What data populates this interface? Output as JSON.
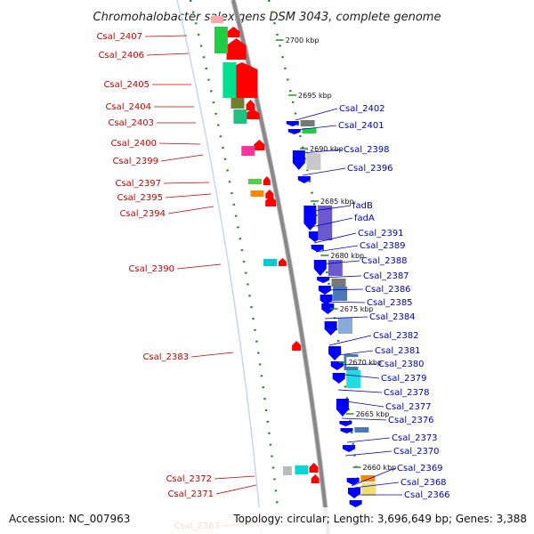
{
  "title": "Chromohalobacter salexigens DSM 3043, complete genome",
  "accession": "Accession: NC_007963",
  "topology": "Topology: circular; Length: 3,696,649 bp; Genes: 3,388",
  "colors": {
    "left_label": "#cc0000",
    "right_label": "#0000cc",
    "forward_gene": "#ff0000",
    "reverse_gene": "#0000ff",
    "backbone": "#888888",
    "ruler": "#2a8a2a"
  },
  "kbp_marks": [
    {
      "label": "2700 kbp",
      "pos": 2700
    },
    {
      "label": "2695 kbp",
      "pos": 2695
    },
    {
      "label": "2690 kbp",
      "pos": 2690
    },
    {
      "label": "2685 kbp",
      "pos": 2685
    },
    {
      "label": "2680 kbp",
      "pos": 2680
    },
    {
      "label": "2675 kbp",
      "pos": 2675
    },
    {
      "label": "2670 kbp",
      "pos": 2670
    },
    {
      "label": "2665 kbp",
      "pos": 2665
    },
    {
      "label": "2660 kbp",
      "pos": 2660
    }
  ],
  "left_labels": [
    "Csal_2407",
    "Csal_2406",
    "Csal_2405",
    "Csal_2404",
    "Csal_2403",
    "Csal_2400",
    "Csal_2399",
    "Csal_2397",
    "Csal_2395",
    "Csal_2394",
    "Csal_2390",
    "Csal_2383",
    "Csal_2372",
    "Csal_2371",
    "Csal_2367"
  ],
  "right_labels": [
    "Csal_2402",
    "Csal_2401",
    "Csal_2398",
    "Csal_2396",
    "fadB",
    "fadA",
    "Csal_2391",
    "Csal_2389",
    "Csal_2388",
    "Csal_2387",
    "Csal_2386",
    "Csal_2385",
    "Csal_2384",
    "Csal_2382",
    "Csal_2381",
    "Csal_2380",
    "Csal_2379",
    "Csal_2378",
    "Csal_2377",
    "Csal_2376",
    "Csal_2373",
    "Csal_2370",
    "Csal_2369",
    "Csal_2368",
    "Csal_2366"
  ]
}
